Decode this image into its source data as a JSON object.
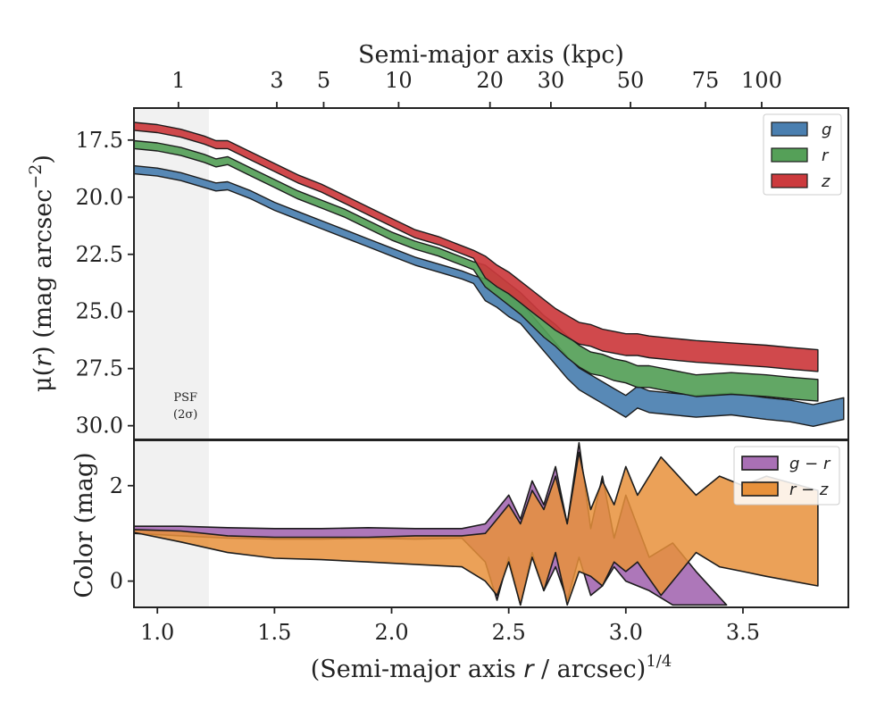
{
  "colors": {
    "g": "#4a7fb0",
    "r": "#55a058",
    "z": "#cc3a3d",
    "g_r": "#a970b5",
    "r_z": "#e8913b",
    "psf_shade": "#ebebeb",
    "outline": "#1c1c1c"
  },
  "chart_data": [
    {
      "panel": "surface-brightness",
      "type": "area",
      "top_axis": {
        "label": "Semi-major axis (kpc)",
        "ticks": [
          {
            "label": "1",
            "x": 1.09
          },
          {
            "label": "3",
            "x": 1.51
          },
          {
            "label": "5",
            "x": 1.71
          },
          {
            "label": "10",
            "x": 2.03
          },
          {
            "label": "20",
            "x": 2.42
          },
          {
            "label": "30",
            "x": 2.68
          },
          {
            "label": "50",
            "x": 3.02
          },
          {
            "label": "75",
            "x": 3.34
          },
          {
            "label": "100",
            "x": 3.58
          }
        ]
      },
      "xlim": [
        0.9,
        3.95
      ],
      "ylim": [
        30.6,
        16.1
      ],
      "ylabel": "μ(r) (mag arcsec⁻²)",
      "yticks": [
        17.5,
        20.0,
        22.5,
        25.0,
        27.5,
        30.0
      ],
      "ytick_labels": [
        "17.5",
        "20.0",
        "22.5",
        "25.0",
        "27.5",
        "30.0"
      ],
      "psf": {
        "x_max": 1.22,
        "label_line1": "PSF",
        "label_line2": "(2σ)"
      },
      "legend": {
        "location": "upper right",
        "entries": [
          "g",
          "r",
          "z"
        ]
      },
      "series": [
        {
          "name": "g",
          "band_width": 0.35,
          "x": [
            0.9,
            1.0,
            1.1,
            1.2,
            1.25,
            1.3,
            1.4,
            1.5,
            1.6,
            1.7,
            1.8,
            1.9,
            2.0,
            2.1,
            2.2,
            2.3,
            2.35,
            2.4,
            2.45,
            2.5,
            2.55,
            2.6,
            2.65,
            2.7,
            2.75,
            2.8,
            2.85,
            2.9,
            2.95,
            3.0,
            3.05,
            3.1,
            3.2,
            3.3,
            3.45,
            3.6,
            3.7,
            3.8,
            3.93
          ],
          "y": [
            18.8,
            18.9,
            19.1,
            19.4,
            19.55,
            19.5,
            19.9,
            20.4,
            20.8,
            21.2,
            21.6,
            22.0,
            22.4,
            22.8,
            23.1,
            23.4,
            23.6,
            24.0,
            24.3,
            24.7,
            25.0,
            25.6,
            26.2,
            26.8,
            27.4,
            27.9,
            28.2,
            28.5,
            28.8,
            29.1,
            28.7,
            28.9,
            29.0,
            29.1,
            29.0,
            29.2,
            29.3,
            29.5,
            29.2
          ]
        },
        {
          "name": "r",
          "band_width": 0.35,
          "x": [
            0.9,
            1.0,
            1.1,
            1.2,
            1.25,
            1.3,
            1.4,
            1.5,
            1.6,
            1.7,
            1.8,
            1.9,
            2.0,
            2.1,
            2.2,
            2.3,
            2.35,
            2.4,
            2.45,
            2.5,
            2.55,
            2.6,
            2.65,
            2.7,
            2.75,
            2.8,
            2.85,
            2.9,
            2.95,
            3.0,
            3.05,
            3.1,
            3.2,
            3.3,
            3.45,
            3.6,
            3.7,
            3.82
          ],
          "y": [
            17.7,
            17.8,
            18.0,
            18.3,
            18.5,
            18.4,
            18.9,
            19.4,
            19.9,
            20.3,
            20.7,
            21.2,
            21.7,
            22.1,
            22.4,
            22.8,
            23.0,
            23.4,
            23.8,
            24.2,
            24.6,
            25.1,
            25.6,
            26.0,
            26.5,
            26.9,
            27.2,
            27.3,
            27.5,
            27.6,
            27.8,
            27.8,
            28.0,
            28.2,
            28.1,
            28.2,
            28.3,
            28.4
          ]
        },
        {
          "name": "z",
          "band_width": 0.35,
          "x": [
            0.9,
            1.0,
            1.1,
            1.2,
            1.25,
            1.3,
            1.4,
            1.5,
            1.6,
            1.7,
            1.8,
            1.9,
            2.0,
            2.1,
            2.2,
            2.3,
            2.35,
            2.4,
            2.45,
            2.5,
            2.55,
            2.6,
            2.65,
            2.7,
            2.75,
            2.8,
            2.85,
            2.9,
            2.95,
            3.0,
            3.05,
            3.1,
            3.2,
            3.3,
            3.45,
            3.6,
            3.7,
            3.82
          ],
          "y": [
            16.9,
            17.0,
            17.2,
            17.5,
            17.7,
            17.7,
            18.2,
            18.7,
            19.2,
            19.6,
            20.1,
            20.6,
            21.1,
            21.6,
            21.9,
            22.3,
            22.5,
            23.0,
            23.4,
            23.7,
            24.1,
            24.5,
            24.9,
            25.3,
            25.6,
            25.9,
            26.0,
            26.2,
            26.3,
            26.4,
            26.4,
            26.5,
            26.6,
            26.7,
            26.8,
            26.9,
            27.0,
            27.1
          ]
        }
      ]
    },
    {
      "panel": "color",
      "type": "area",
      "xlabel": "(Semi-major axis r / arcsec)^1/4",
      "ylabel": "Color (mag)",
      "xlim": [
        0.9,
        3.95
      ],
      "ylim": [
        -0.55,
        2.95
      ],
      "xticks": [
        1.0,
        1.5,
        2.0,
        2.5,
        3.0,
        3.5
      ],
      "xtick_labels": [
        "1.0",
        "1.5",
        "2.0",
        "2.5",
        "3.0",
        "3.5"
      ],
      "yticks": [
        0,
        2
      ],
      "ytick_labels": [
        "0",
        "2"
      ],
      "legend": {
        "location": "upper right",
        "entries": [
          "g − r",
          "r − z"
        ]
      },
      "series": [
        {
          "name": "g − r",
          "x": [
            0.9,
            1.1,
            1.3,
            1.5,
            1.7,
            1.9,
            2.1,
            2.3,
            2.4,
            2.45,
            2.5,
            2.55,
            2.6,
            2.65,
            2.7,
            2.75,
            2.8,
            2.85,
            2.9,
            2.95,
            3.0,
            3.1,
            3.2,
            3.3,
            3.43
          ],
          "upper": [
            1.15,
            1.15,
            1.12,
            1.1,
            1.1,
            1.12,
            1.1,
            1.1,
            1.2,
            1.5,
            1.8,
            1.3,
            2.1,
            1.6,
            2.4,
            1.2,
            2.9,
            1.1,
            2.2,
            0.9,
            1.8,
            0.5,
            0.8,
            0.2,
            -0.5
          ],
          "lower": [
            1.0,
            0.95,
            0.9,
            0.88,
            0.88,
            0.9,
            0.88,
            0.9,
            0.4,
            -0.4,
            0.5,
            -0.5,
            0.6,
            -0.2,
            0.3,
            -0.4,
            0.5,
            -0.3,
            -0.1,
            0.3,
            0.0,
            -0.2,
            -0.5,
            -0.5,
            -0.5
          ]
        },
        {
          "name": "r − z",
          "x": [
            0.9,
            1.1,
            1.3,
            1.5,
            1.7,
            1.9,
            2.1,
            2.3,
            2.4,
            2.45,
            2.5,
            2.55,
            2.6,
            2.65,
            2.7,
            2.75,
            2.8,
            2.85,
            2.9,
            2.95,
            3.0,
            3.05,
            3.15,
            3.3,
            3.4,
            3.5,
            3.6,
            3.82
          ],
          "upper": [
            1.08,
            1.05,
            0.95,
            0.92,
            0.92,
            0.92,
            0.95,
            0.95,
            1.0,
            1.3,
            1.6,
            1.2,
            1.9,
            1.5,
            2.2,
            1.2,
            2.7,
            1.5,
            2.1,
            1.6,
            2.4,
            1.8,
            2.6,
            1.8,
            2.2,
            2.0,
            2.2,
            1.9
          ],
          "lower": [
            1.02,
            0.82,
            0.6,
            0.48,
            0.45,
            0.4,
            0.35,
            0.3,
            0.0,
            -0.3,
            0.4,
            -0.5,
            0.5,
            -0.2,
            0.6,
            -0.5,
            0.2,
            0.1,
            -0.1,
            0.4,
            0.2,
            0.4,
            -0.3,
            0.6,
            0.3,
            0.2,
            0.1,
            -0.1
          ]
        }
      ]
    }
  ]
}
